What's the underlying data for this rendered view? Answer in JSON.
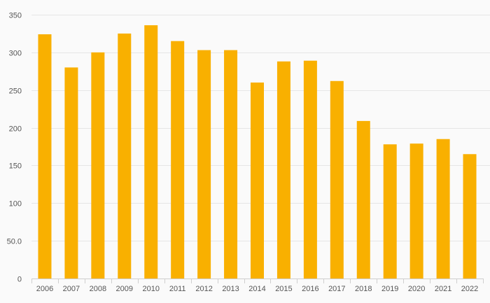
{
  "chart_data": {
    "type": "bar",
    "title": "",
    "xlabel": "",
    "ylabel": "",
    "categories": [
      "2006",
      "2007",
      "2008",
      "2009",
      "2010",
      "2011",
      "2012",
      "2013",
      "2014",
      "2015",
      "2016",
      "2017",
      "2018",
      "2019",
      "2020",
      "2021",
      "2022"
    ],
    "values": [
      324,
      280,
      300,
      325,
      336,
      315,
      303,
      303,
      260,
      288,
      289,
      262,
      209,
      178,
      179,
      185,
      165
    ],
    "ylim": [
      0,
      350
    ],
    "yticks": [
      0,
      50,
      100,
      150,
      200,
      250,
      300,
      350
    ],
    "ytick_labels": [
      "0",
      "50.0",
      "100",
      "150",
      "200",
      "250",
      "300",
      "350"
    ],
    "grid": true,
    "legend": "none",
    "colors": {
      "bar": "#f9b000",
      "grid": "#e6e6e6",
      "axis": "#cfcfcf",
      "text": "#555555",
      "background": "#fafafa"
    }
  }
}
